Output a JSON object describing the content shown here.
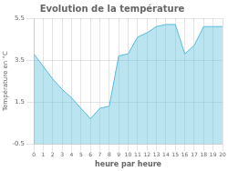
{
  "chart_data": {
    "type": "area",
    "title": "Evolution de la température",
    "xlabel": "heure par heure",
    "ylabel": "Température en °C",
    "x": [
      0,
      1,
      2,
      3,
      4,
      5,
      6,
      7,
      8,
      9,
      10,
      11,
      12,
      13,
      14,
      15,
      16,
      17,
      18,
      19,
      20
    ],
    "values": [
      3.8,
      3.2,
      2.6,
      2.1,
      1.7,
      1.2,
      0.7,
      1.2,
      1.3,
      3.7,
      3.8,
      4.6,
      4.8,
      5.1,
      5.2,
      5.2,
      3.8,
      4.2,
      5.1,
      5.1,
      5.1
    ],
    "color": "#55bbdd",
    "xlim": [
      0,
      20
    ],
    "xticks": [
      0,
      1,
      2,
      3,
      4,
      5,
      6,
      7,
      8,
      9,
      10,
      11,
      12,
      13,
      14,
      15,
      16,
      17,
      18,
      19,
      20
    ],
    "ylim": [
      -0.5,
      5.5
    ],
    "yticks": [
      -0.5,
      1.5,
      3.5,
      5.5
    ],
    "grid": true
  }
}
